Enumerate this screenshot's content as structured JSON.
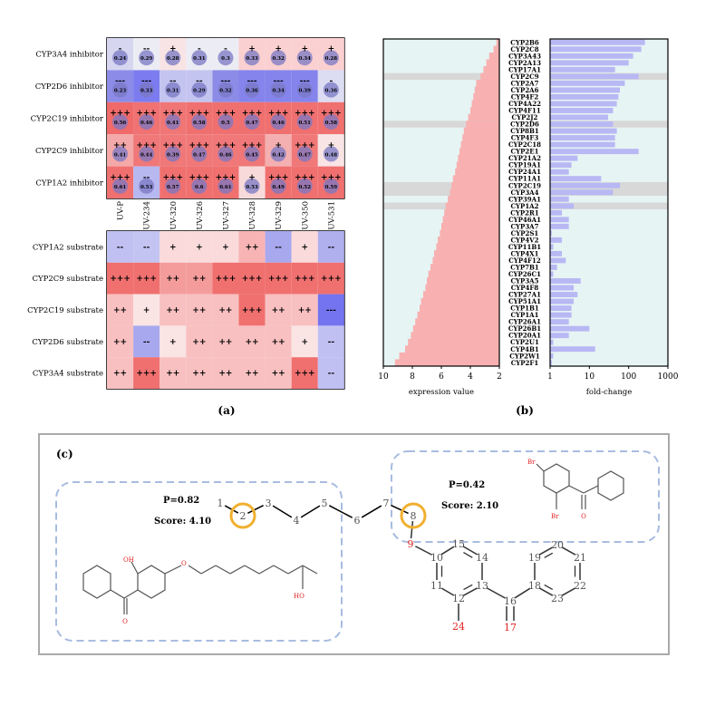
{
  "panel_a": {
    "caption": "(a)",
    "inhibitor_rows": [
      "CYP3A4 inhibitor",
      "CYP2D6 inhibitor",
      "CYP2C19 inhibitor",
      "CYP2C9 inhibitor",
      "CYP1A2 inhibitor"
    ],
    "columns": [
      "UV-P",
      "UV-234",
      "UV-320",
      "UV-326",
      "UV-327",
      "UV-328",
      "UV-329",
      "UV-350",
      "UV-531"
    ],
    "inhibitor_symbols": [
      [
        "-",
        "--",
        "+",
        "-",
        "-",
        "+",
        "+",
        "+",
        "+"
      ],
      [
        "---",
        "---",
        "--",
        "--",
        "---",
        "---",
        "---",
        "---",
        "-"
      ],
      [
        "+++",
        "+++",
        "+++",
        "+++",
        "+++",
        "+++",
        "+++",
        "+++",
        "+++"
      ],
      [
        "++",
        "+++",
        "+++",
        "+++",
        "+++",
        "+++",
        "+",
        "+++",
        "+"
      ],
      [
        "+++",
        "--",
        "+++",
        "+++",
        "+++",
        "+",
        "+++",
        "+++",
        "+++"
      ]
    ],
    "inhibitor_values": [
      [
        "0.24",
        "0.29",
        "0.28",
        "0.31",
        "0.3",
        "0.33",
        "0.32",
        "0.34",
        "0.28"
      ],
      [
        "0.23",
        "0.33",
        "0.31",
        "0.29",
        "0.32",
        "0.36",
        "0.34",
        "0.39",
        "0.36"
      ],
      [
        "0.56",
        "0.46",
        "0.41",
        "0.58",
        "0.5",
        "0.47",
        "0.46",
        "0.51",
        "0.58"
      ],
      [
        "0.41",
        "0.44",
        "0.39",
        "0.47",
        "0.46",
        "0.45",
        "0.42",
        "0.47",
        "0.48"
      ],
      [
        "0.61",
        "0.53",
        "0.57",
        "0.6",
        "0.61",
        "0.53",
        "0.49",
        "0.52",
        "0.59"
      ]
    ],
    "inhibitor_colors": [
      [
        "#d6d6f0",
        "#ececf4",
        "#f8e4e4",
        "#ececf4",
        "#ececf4",
        "#fad0d0",
        "#fad0d0",
        "#fad0d0",
        "#fad0d0"
      ],
      [
        "#8c8ce8",
        "#7c7cf0",
        "#c4c4f0",
        "#c4c4f0",
        "#8c8ce8",
        "#8484ec",
        "#8484ec",
        "#8484ec",
        "#dcdcf2"
      ],
      [
        "#f06a6a",
        "#f07272",
        "#f07676",
        "#f07070",
        "#f07070",
        "#f07070",
        "#f07070",
        "#f07070",
        "#f07070"
      ],
      [
        "#f4a8a8",
        "#f07878",
        "#f07878",
        "#f07878",
        "#f07878",
        "#f07878",
        "#f4b0b0",
        "#f07878",
        "#f8e4e4"
      ],
      [
        "#f07070",
        "#b8b8f0",
        "#f07070",
        "#f07070",
        "#f07070",
        "#f8dada",
        "#f07070",
        "#f07070",
        "#f07070"
      ]
    ],
    "substrate_rows": [
      "CYP1A2 substrate",
      "CYP2C9 substrate",
      "CYP2C19 substrate",
      "CYP2D6 substrate",
      "CYP3A4 substrate"
    ],
    "substrate_symbols": [
      [
        "--",
        "--",
        "+",
        "+",
        "+",
        "++",
        "--",
        "+",
        "--"
      ],
      [
        "+++",
        "+++",
        "++",
        "++",
        "+++",
        "+++",
        "+++",
        "+++",
        "+++"
      ],
      [
        "++",
        "+",
        "++",
        "++",
        "++",
        "+++",
        "++",
        "++",
        "---"
      ],
      [
        "++",
        "--",
        "+",
        "++",
        "++",
        "++",
        "++",
        "+",
        "--"
      ],
      [
        "++",
        "+++",
        "++",
        "++",
        "++",
        "++",
        "++",
        "+++",
        "--"
      ]
    ],
    "substrate_colors": [
      [
        "#c0c0f2",
        "#c4c4f2",
        "#fadada",
        "#fadada",
        "#fadada",
        "#f8b4b4",
        "#a8a8ee",
        "#fadada",
        "#b0b0ee"
      ],
      [
        "#f07070",
        "#f07070",
        "#f49c9c",
        "#f49c9c",
        "#f07070",
        "#f07070",
        "#f07070",
        "#f07070",
        "#f07070"
      ],
      [
        "#f8c0c0",
        "#fae4e4",
        "#f8c0c0",
        "#f8c0c0",
        "#f8c0c0",
        "#f07070",
        "#f8c0c0",
        "#f8c0c0",
        "#7474f0"
      ],
      [
        "#f8c0c0",
        "#a8a8ee",
        "#fae4e4",
        "#f8c0c0",
        "#f8c0c0",
        "#f8c0c0",
        "#f8c0c0",
        "#fae4e4",
        "#c0c0f2"
      ],
      [
        "#f8c0c0",
        "#f07070",
        "#f8c0c0",
        "#f8c0c0",
        "#f8c0c0",
        "#f8c0c0",
        "#f8c0c0",
        "#f07070",
        "#c0c0f2"
      ]
    ]
  },
  "chart_data": [
    {
      "type": "bar",
      "panel": "(b) left",
      "xlabel": "expression value",
      "xlim": [
        10,
        2
      ],
      "ticks": [
        "10",
        "8",
        "6",
        "4",
        "2"
      ],
      "categories": [
        "CYP2B6",
        "CYP2C8",
        "CYP3A43",
        "CYP2A13",
        "CYP17A1",
        "CYP2C9",
        "CYP2A7",
        "CYP2A6",
        "CYP4F2",
        "CYP4A22",
        "CYP4F11",
        "CYP2J2",
        "CYP2D6",
        "CYP8B1",
        "CYP4F3",
        "CYP2C18",
        "CYP2E1",
        "CYP21A2",
        "CYP19A1",
        "CYP24A1",
        "CYP11A1",
        "CYP2C19",
        "CYP3A4",
        "CYP39A1",
        "CYP1A2",
        "CYP2R1",
        "CYP46A1",
        "CYP3A7",
        "CYP2S1",
        "CYP4V2",
        "CYP11B1",
        "CYP4X1",
        "CYP4F12",
        "CYP7B1",
        "CYP26C1",
        "CYP3A5",
        "CYP4F8",
        "CYP27A1",
        "CYP51A1",
        "CYP1B1",
        "CYP1A1",
        "CYP26A1",
        "CYP26B1",
        "CYP20A1",
        "CYP2U1",
        "CYP4B1",
        "CYP2W1",
        "CYP2F1"
      ],
      "values": [
        2.2,
        2.4,
        2.7,
        2.9,
        3.1,
        3.3,
        3.6,
        3.7,
        3.8,
        3.9,
        4.0,
        4.15,
        4.3,
        4.45,
        4.55,
        4.65,
        4.75,
        4.85,
        4.95,
        5.05,
        5.2,
        5.3,
        5.4,
        5.55,
        5.7,
        5.8,
        5.9,
        6.0,
        6.1,
        6.25,
        6.35,
        6.5,
        6.6,
        6.75,
        6.9,
        7.0,
        7.1,
        7.25,
        7.4,
        7.5,
        7.65,
        7.8,
        7.95,
        8.1,
        8.3,
        8.5,
        8.9,
        9.2
      ],
      "highlighted": [
        "CYP2C9",
        "CYP2D6",
        "CYP2C19",
        "CYP3A4",
        "CYP1A2"
      ]
    },
    {
      "type": "bar",
      "panel": "(b) right",
      "xlabel": "fold-change",
      "scale": "log",
      "xlim": [
        1,
        1000
      ],
      "ticks": [
        "1",
        "10",
        "100",
        "1000"
      ],
      "categories": [
        "CYP2B6",
        "CYP2C8",
        "CYP3A43",
        "CYP2A13",
        "CYP17A1",
        "CYP2C9",
        "CYP2A7",
        "CYP2A6",
        "CYP4F2",
        "CYP4A22",
        "CYP4F11",
        "CYP2J2",
        "CYP2D6",
        "CYP8B1",
        "CYP4F3",
        "CYP2C18",
        "CYP2E1",
        "CYP21A2",
        "CYP19A1",
        "CYP24A1",
        "CYP11A1",
        "CYP2C19",
        "CYP3A4",
        "CYP39A1",
        "CYP1A2",
        "CYP2R1",
        "CYP46A1",
        "CYP3A7",
        "CYP2S1",
        "CYP4V2",
        "CYP11B1",
        "CYP4X1",
        "CYP4F12",
        "CYP7B1",
        "CYP26C1",
        "CYP3A5",
        "CYP4F8",
        "CYP27A1",
        "CYP51A1",
        "CYP1B1",
        "CYP1A1",
        "CYP26A1",
        "CYP26B1",
        "CYP20A1",
        "CYP2U1",
        "CYP4B1",
        "CYP2W1",
        "CYP2F1"
      ],
      "values": [
        260,
        210,
        130,
        100,
        45,
        180,
        80,
        60,
        55,
        50,
        40,
        30,
        40,
        50,
        45,
        45,
        180,
        5,
        3.5,
        3,
        20,
        60,
        40,
        3,
        4,
        2,
        3,
        3,
        1.1,
        2,
        1.2,
        2,
        2.5,
        1.5,
        1.2,
        6,
        4,
        5,
        4,
        3.5,
        3.5,
        3,
        10,
        3,
        1.2,
        14,
        1.2,
        1.1
      ]
    }
  ],
  "panel_b": {
    "caption": "(b)"
  },
  "panel_c": {
    "caption": "(c)",
    "left_box": {
      "p": "P=0.82",
      "score": "Score: 4.10"
    },
    "right_box": {
      "p": "P=0.42",
      "score": "Score: 2.10"
    },
    "atom_labels": [
      "1",
      "2",
      "3",
      "4",
      "5",
      "6",
      "7",
      "8",
      "9",
      "10",
      "11",
      "12",
      "13",
      "14",
      "15",
      "16",
      "17",
      "18",
      "19",
      "20",
      "21",
      "22",
      "23",
      "24"
    ],
    "highlight_atoms": [
      "2",
      "8"
    ],
    "fragment_labels": {
      "oh": "OH",
      "ho": "HO",
      "o": "O",
      "br": "Br"
    }
  },
  "colors": {
    "red_bar": "#f8b0b0",
    "blue_bar": "#b8b8f4",
    "panel_bg": "#e6f4f4",
    "highlight_row": "#d8d8d8",
    "orange_circle": "#f0b030",
    "dashed": "#a8bce0",
    "atom_red": "#e02020"
  }
}
